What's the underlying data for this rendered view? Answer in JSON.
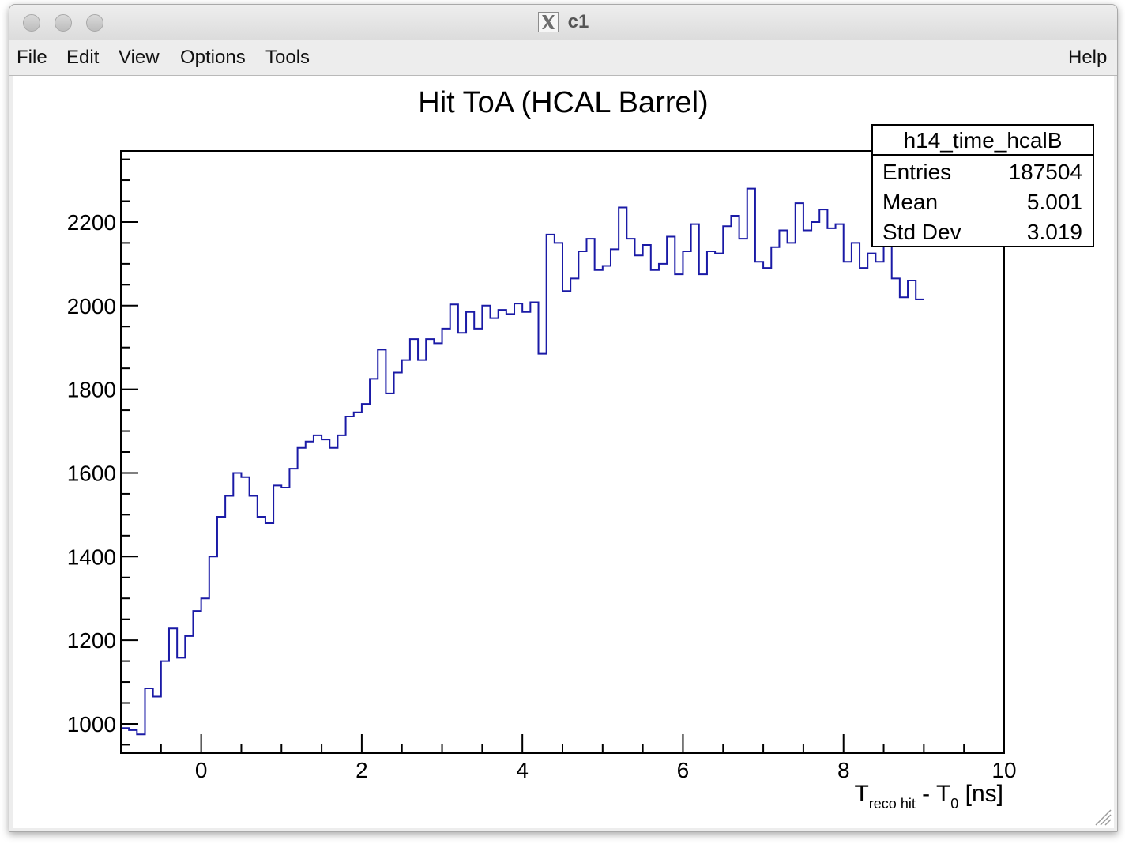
{
  "window": {
    "title": "c1",
    "icon": "x11-icon"
  },
  "menu": {
    "file": "File",
    "edit": "Edit",
    "view": "View",
    "options": "Options",
    "tools": "Tools",
    "help": "Help"
  },
  "stats": {
    "name": "h14_time_hcalB",
    "rows": [
      {
        "label": "Entries",
        "value": "187504"
      },
      {
        "label": "Mean",
        "value": "5.001"
      },
      {
        "label": "Std Dev",
        "value": "3.019"
      }
    ]
  },
  "colors": {
    "line": "#1a1aa6",
    "axis": "#000000"
  },
  "chart_data": {
    "type": "line",
    "style": "step-histogram",
    "title": "Hit ToA (HCAL Barrel)",
    "xlabel": {
      "main": "T",
      "sub1": "reco hit",
      "mid": " - T",
      "sub2": "0",
      "tail": " [ns]"
    },
    "ylabel": "",
    "xlim": [
      -1,
      10
    ],
    "ylim": [
      930,
      2370
    ],
    "x_ticks": [
      0,
      2,
      4,
      6,
      8,
      10
    ],
    "y_ticks": [
      1000,
      1200,
      1400,
      1600,
      1800,
      2000,
      2200
    ],
    "grid": false,
    "bin_width": 0.1,
    "x_start": -1,
    "values": [
      990,
      985,
      975,
      1085,
      1065,
      1150,
      1228,
      1158,
      1210,
      1270,
      1300,
      1400,
      1495,
      1545,
      1600,
      1590,
      1545,
      1495,
      1480,
      1570,
      1565,
      1610,
      1660,
      1675,
      1690,
      1680,
      1660,
      1690,
      1735,
      1745,
      1765,
      1825,
      1895,
      1790,
      1840,
      1870,
      1920,
      1870,
      1920,
      1910,
      1945,
      2003,
      1935,
      1985,
      1945,
      2000,
      1970,
      1990,
      1980,
      2005,
      1985,
      2008,
      1885,
      2170,
      2150,
      2035,
      2065,
      2130,
      2160,
      2085,
      2095,
      2135,
      2235,
      2160,
      2120,
      2145,
      2085,
      2100,
      2165,
      2075,
      2130,
      2195,
      2075,
      2130,
      2125,
      2190,
      2215,
      2160,
      2280,
      2105,
      2090,
      2140,
      2180,
      2150,
      2245,
      2180,
      2200,
      2230,
      2185,
      2195,
      2105,
      2150,
      2090,
      2125,
      2105,
      2165,
      2065,
      2020,
      2060,
      2015
    ]
  }
}
